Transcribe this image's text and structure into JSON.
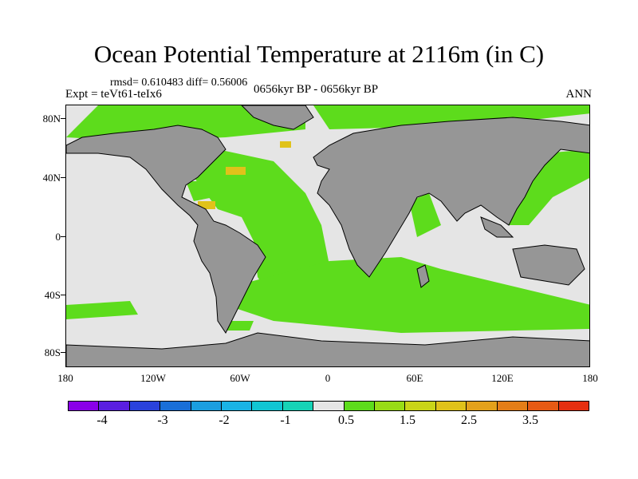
{
  "title": "Ocean Potential Temperature at 2116m (in C)",
  "rmsd_line": "rmsd= 0.610483 diff= 0.56006",
  "experiment": "Expt = teVt61-teIx6",
  "period": "0656kyr BP - 0656kyr BP",
  "season": "ANN",
  "y_axis_labels": [
    "80N",
    "40N",
    "0",
    "40S",
    "80S"
  ],
  "x_axis_labels": [
    "180",
    "120W",
    "60W",
    "0",
    "60E",
    "120E",
    "180"
  ],
  "colorbar": {
    "colors": [
      "#8a00e8",
      "#5a1fe0",
      "#2a42dc",
      "#1a6fd8",
      "#1b9ee0",
      "#1ab3e5",
      "#11c6d3",
      "#16d3b6",
      "#e5e5e5",
      "#5ddc1c",
      "#98dc16",
      "#c9d418",
      "#e0c21a",
      "#e3a11b",
      "#e47e18",
      "#e65a14",
      "#e52f10"
    ],
    "labels": [
      "-4",
      "-3",
      "-2",
      "-1",
      "0.5",
      "1.5",
      "2.5",
      "3.5"
    ]
  },
  "legend_colors": {
    "land": "#969696",
    "near_zero": "#e5e5e5",
    "warm_0_5": "#5ddc1c",
    "warm_2": "#e0c21a"
  }
}
